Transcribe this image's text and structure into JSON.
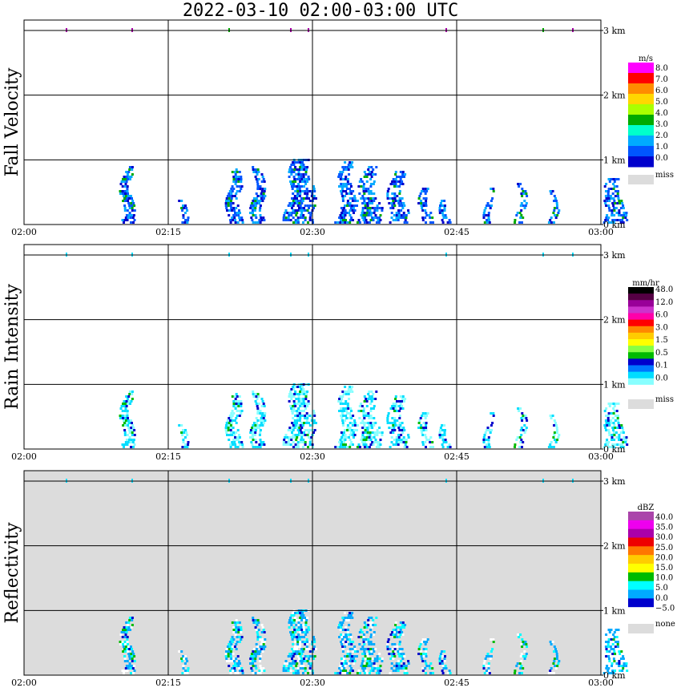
{
  "title": "2022-03-10   02:00-03:00 UTC",
  "colors": {
    "none_fill": "#dcdcdc",
    "grid": "#000000"
  },
  "chart_data": [
    {
      "type": "heatmap",
      "panel": "fall-velocity",
      "ylabel": "Fall Velocity",
      "x_ticks": [
        "02:00",
        "02:15",
        "02:30",
        "02:45",
        "03:00"
      ],
      "y_ticks": [
        "3 km",
        "2 km",
        "1 km",
        "0 km"
      ],
      "ylim_km": [
        0,
        3.2
      ],
      "background": "white",
      "legend": {
        "unit": "m/s",
        "labels": [
          "8.0",
          "7.0",
          "6.0",
          "5.0",
          "4.0",
          "3.0",
          "2.0",
          "1.0",
          "0.0"
        ],
        "colors": [
          "#ff00ff",
          "#ff0000",
          "#ff8c00",
          "#ffd700",
          "#aaff00",
          "#00aa00",
          "#00ffcc",
          "#00aaff",
          "#0055ff",
          "#0000cc"
        ],
        "missing_label": "miss",
        "missing_color": "#dcdcdc"
      }
    },
    {
      "type": "heatmap",
      "panel": "rain-intensity",
      "ylabel": "Rain Intensity",
      "x_ticks": [
        "02:00",
        "02:15",
        "02:30",
        "02:45",
        "03:00"
      ],
      "y_ticks": [
        "3 km",
        "2 km",
        "1 km",
        "0 km"
      ],
      "ylim_km": [
        0,
        3.2
      ],
      "background": "white",
      "legend": {
        "unit": "mm/hr",
        "labels": [
          "48.0",
          "12.0",
          "6.0",
          "3.0",
          "1.5",
          "0.5",
          "0.1",
          "0.0"
        ],
        "colors": [
          "#000000",
          "#550044",
          "#990099",
          "#cc33cc",
          "#ff00aa",
          "#ff0000",
          "#ff8800",
          "#ffcc00",
          "#ffff00",
          "#88ff44",
          "#00bb00",
          "#0000cc",
          "#0077ff",
          "#00ddff",
          "#88ffff",
          "#ffffff"
        ],
        "missing_label": "miss",
        "missing_color": "#dcdcdc"
      }
    },
    {
      "type": "heatmap",
      "panel": "reflectivity",
      "ylabel": "Reflectivity",
      "x_ticks": [
        "02:00",
        "02:15",
        "02:30",
        "02:45",
        "03:00"
      ],
      "y_ticks": [
        "3 km",
        "2 km",
        "1 km",
        "0 km"
      ],
      "ylim_km": [
        0,
        3.2
      ],
      "background": "grey",
      "legend": {
        "unit": "dBZ",
        "labels": [
          "40.0",
          "35.0",
          "30.0",
          "25.0",
          "20.0",
          "15.0",
          "10.0",
          "5.0",
          "0.0",
          "−5.0"
        ],
        "colors": [
          "#aa44aa",
          "#ee00ee",
          "#aa00aa",
          "#ee0000",
          "#ff7700",
          "#ffcc00",
          "#ffff00",
          "#00bb00",
          "#00ffff",
          "#00aaff",
          "#0000cc",
          "#ffffff"
        ],
        "missing_label": "none",
        "missing_color": "#dcdcdc"
      }
    }
  ]
}
